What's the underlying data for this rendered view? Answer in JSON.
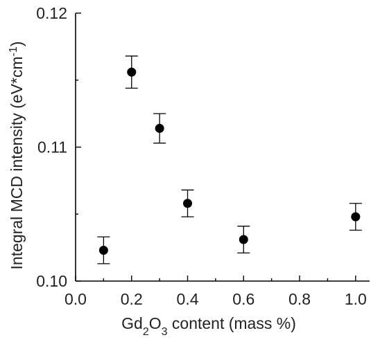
{
  "chart_data": {
    "type": "scatter",
    "title": "",
    "xlabel": {
      "parts": [
        {
          "text": "Gd",
          "sub": false
        },
        {
          "text": "2",
          "sub": true
        },
        {
          "text": "O",
          "sub": false
        },
        {
          "text": "3",
          "sub": true
        },
        {
          "text": " content (mass %)",
          "sub": false
        }
      ]
    },
    "ylabel": {
      "parts": [
        {
          "text": "Integral MCD intensity (eV*cm",
          "sup": false
        },
        {
          "text": "-1",
          "sup": true
        },
        {
          "text": ")",
          "sup": false
        }
      ]
    },
    "xlim": [
      0.0,
      1.05
    ],
    "ylim": [
      0.1,
      0.12
    ],
    "x_ticks": [
      0.0,
      0.2,
      0.4,
      0.6,
      0.8,
      1.0
    ],
    "x_tick_labels": [
      "0.0",
      "0.2",
      "0.4",
      "0.6",
      "0.8",
      "1.0"
    ],
    "y_ticks": [
      0.1,
      0.11,
      0.12
    ],
    "y_tick_labels": [
      "0.10",
      "0.11",
      "0.12"
    ],
    "grid": false,
    "legend": "none",
    "series": [
      {
        "x": [
          0.1,
          0.2,
          0.3,
          0.4,
          0.6,
          1.0
        ],
        "y": [
          0.1023,
          0.1156,
          0.1114,
          0.1058,
          0.1031,
          0.1048
        ],
        "error": [
          0.001,
          0.0012,
          0.0011,
          0.001,
          0.001,
          0.001
        ]
      }
    ],
    "colors": {
      "marker": "#000000",
      "axis": "#000000",
      "text": "#222222"
    }
  }
}
